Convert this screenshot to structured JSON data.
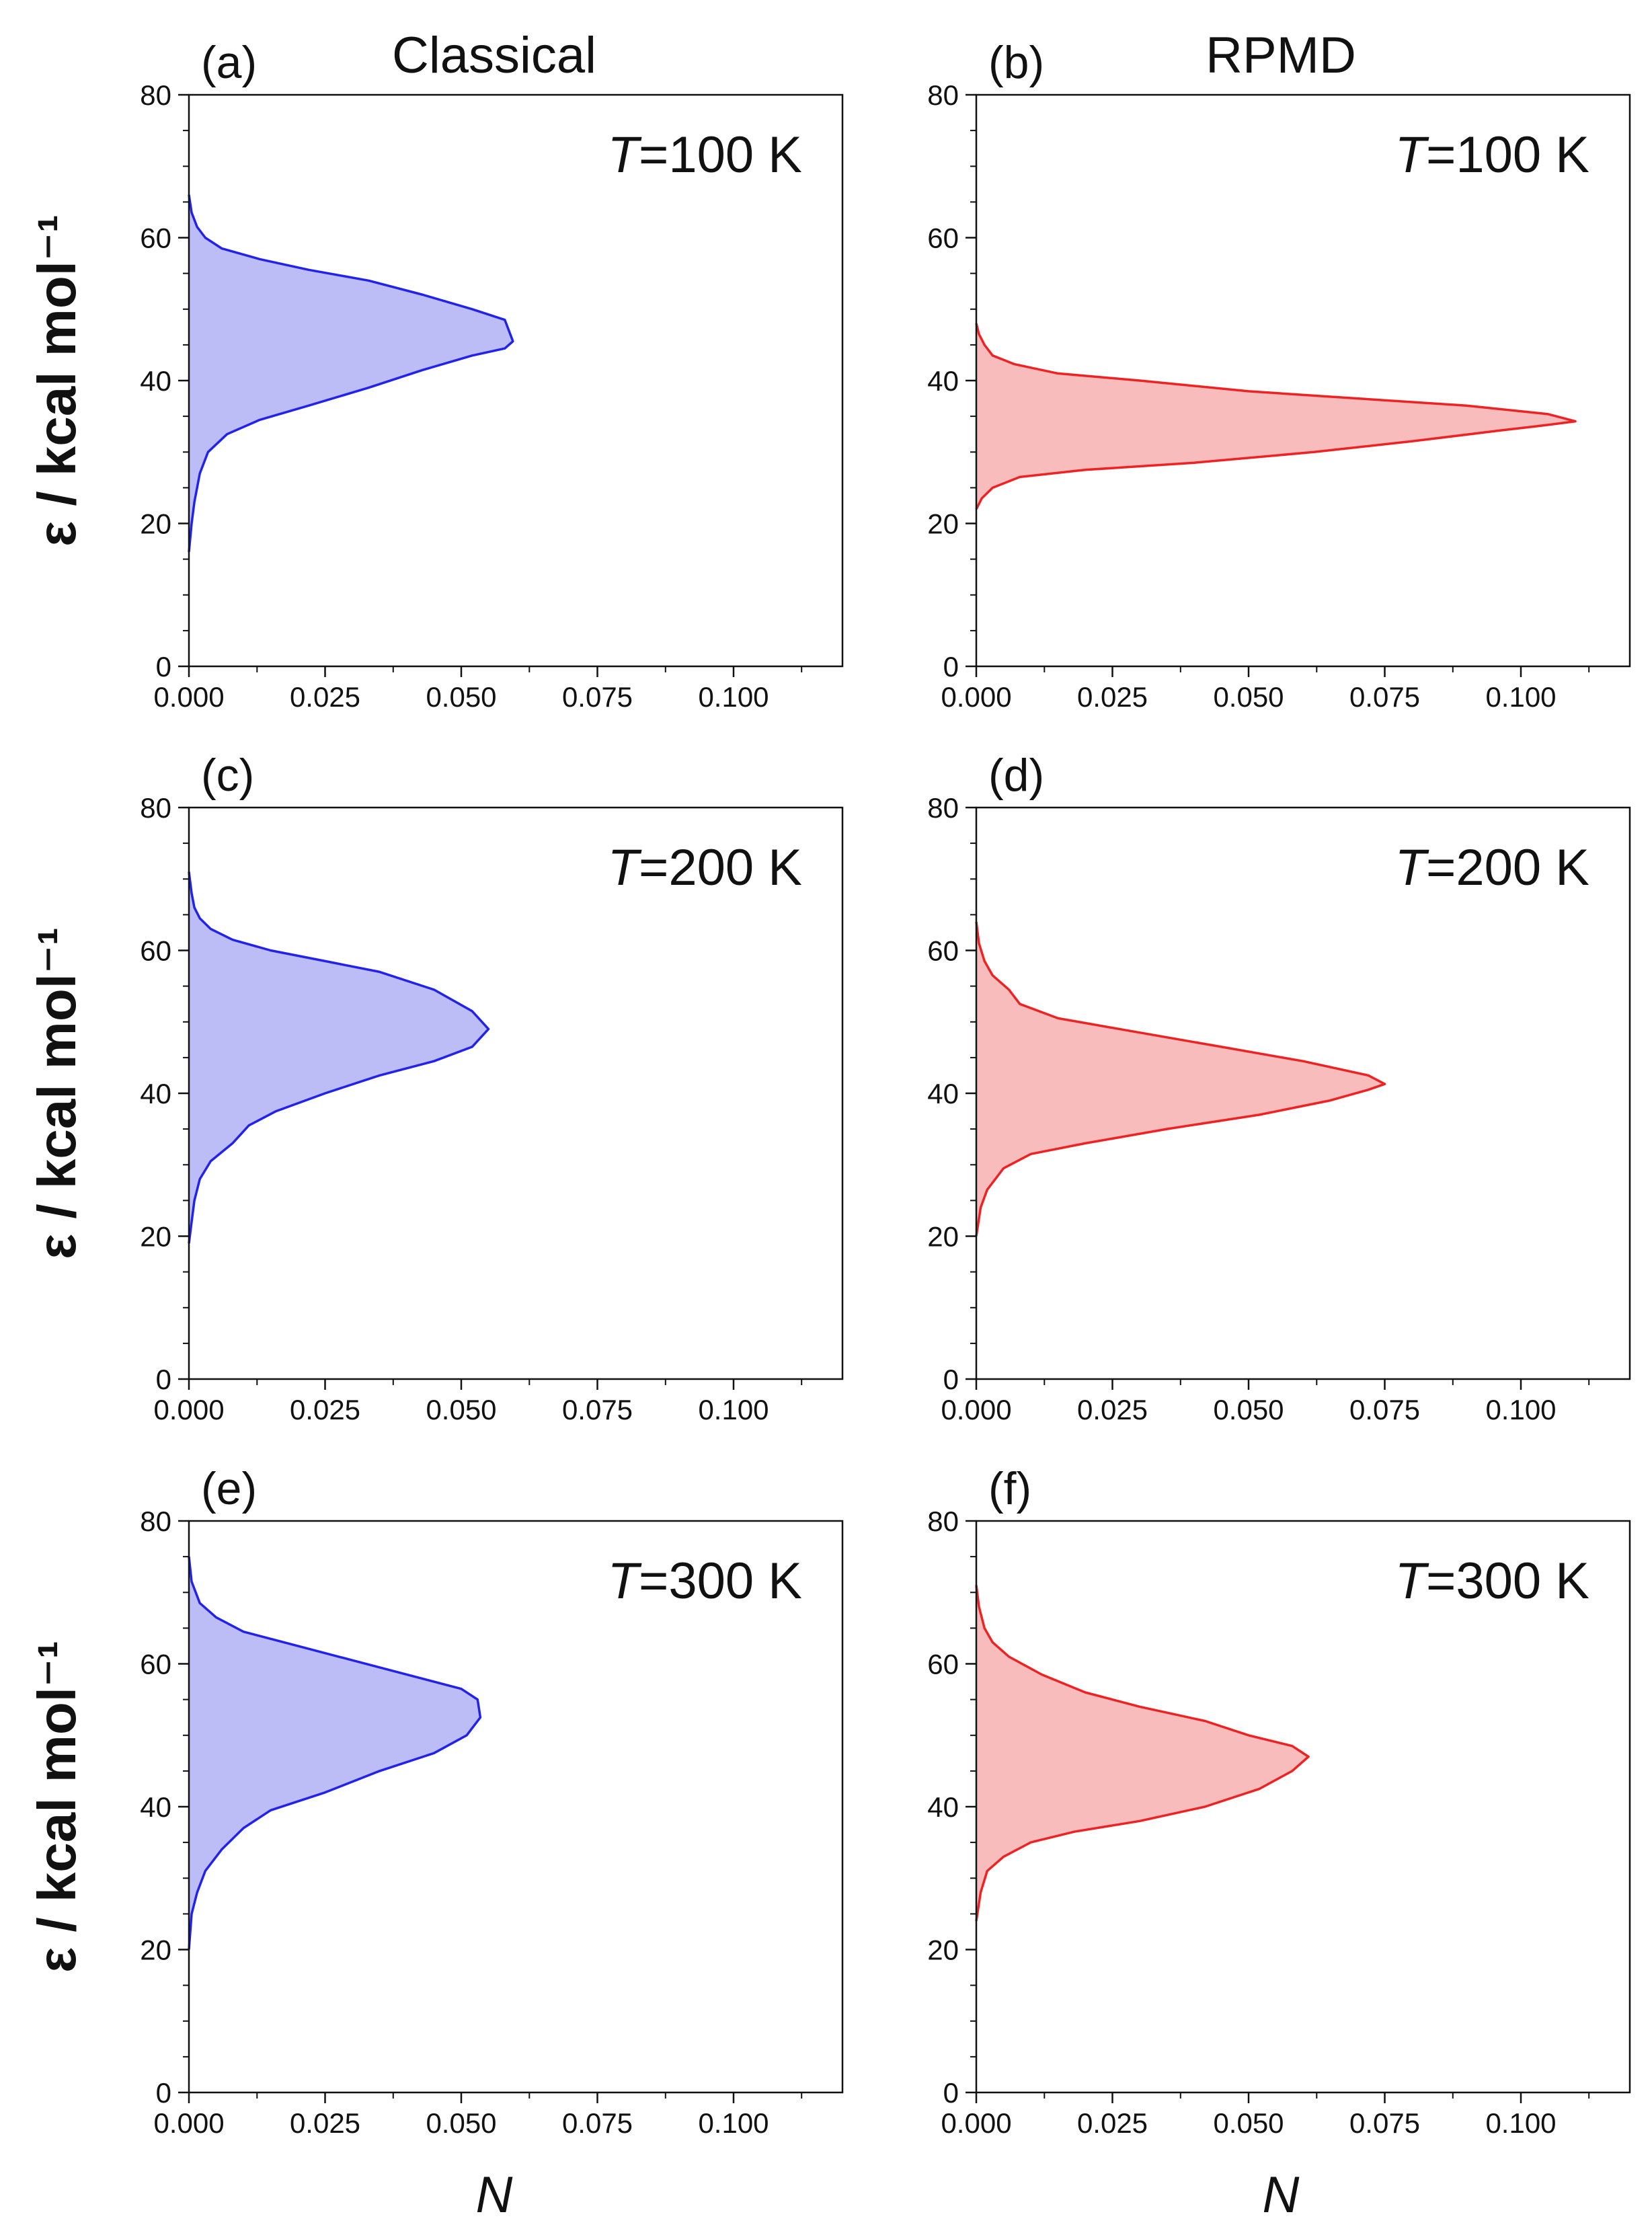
{
  "figure": {
    "column_titles": [
      "Classical",
      "RPMD"
    ],
    "ylabel": "ε / kcal mol⁻¹",
    "xlabel": "N",
    "x_ticks": [
      0,
      0.025,
      0.05,
      0.075,
      0.1
    ],
    "x_tick_labels": [
      "0.000",
      "0.025",
      "0.050",
      "0.075",
      "0.100"
    ],
    "y_ticks": [
      0,
      20,
      40,
      60,
      80
    ],
    "y_tick_labels": [
      "0",
      "20",
      "40",
      "60",
      "80"
    ],
    "xlim": [
      0,
      0.12
    ],
    "ylim": [
      0,
      80
    ],
    "colors": {
      "classical_line": "#2222ee",
      "classical_fill": "#bcbcf7",
      "rpmd_line": "#ee2222",
      "rpmd_fill": "#f9bcbc"
    }
  },
  "chart_data": [
    {
      "panel": "(a)",
      "type": "area",
      "title": "Classical",
      "annotation_prefix": "T",
      "annotation_value": "=100 K",
      "xlabel": "",
      "ylabel": "ε / kcal mol⁻¹",
      "xlim": [
        0,
        0.12
      ],
      "ylim": [
        0,
        80
      ],
      "method": "classical",
      "series": [
        {
          "name": "Classical T=100 K",
          "points": [
            [
              0.0,
              16
            ],
            [
              0.0005,
              20
            ],
            [
              0.001,
              23
            ],
            [
              0.002,
              27
            ],
            [
              0.0035,
              30
            ],
            [
              0.007,
              32.5
            ],
            [
              0.013,
              34.5
            ],
            [
              0.022,
              36.5
            ],
            [
              0.033,
              39
            ],
            [
              0.043,
              41.5
            ],
            [
              0.052,
              43.5
            ],
            [
              0.058,
              44.5
            ],
            [
              0.0595,
              45.5
            ],
            [
              0.058,
              48.5
            ],
            [
              0.052,
              50
            ],
            [
              0.043,
              52
            ],
            [
              0.033,
              54
            ],
            [
              0.022,
              55.5
            ],
            [
              0.013,
              57
            ],
            [
              0.006,
              58.5
            ],
            [
              0.003,
              60
            ],
            [
              0.0015,
              61.5
            ],
            [
              0.0005,
              63.5
            ],
            [
              0.0,
              66
            ]
          ]
        }
      ]
    },
    {
      "panel": "(b)",
      "type": "area",
      "title": "RPMD",
      "annotation_prefix": "T",
      "annotation_value": "=100 K",
      "xlabel": "",
      "ylabel": "",
      "xlim": [
        0,
        0.12
      ],
      "ylim": [
        0,
        80
      ],
      "method": "rpmd",
      "series": [
        {
          "name": "RPMD T=100 K",
          "points": [
            [
              0.0,
              22
            ],
            [
              0.001,
              23.5
            ],
            [
              0.003,
              25
            ],
            [
              0.008,
              26.5
            ],
            [
              0.02,
              27.5
            ],
            [
              0.04,
              28.5
            ],
            [
              0.062,
              30
            ],
            [
              0.08,
              31.5
            ],
            [
              0.096,
              33
            ],
            [
              0.105,
              33.8
            ],
            [
              0.11,
              34.3
            ],
            [
              0.105,
              35.3
            ],
            [
              0.09,
              36.5
            ],
            [
              0.07,
              37.5
            ],
            [
              0.05,
              38.5
            ],
            [
              0.03,
              40
            ],
            [
              0.015,
              41
            ],
            [
              0.007,
              42.3
            ],
            [
              0.003,
              43.5
            ],
            [
              0.0015,
              45
            ],
            [
              0.0005,
              46.5
            ],
            [
              0.0,
              48
            ]
          ]
        }
      ]
    },
    {
      "panel": "(c)",
      "type": "area",
      "title": "",
      "annotation_prefix": "T",
      "annotation_value": "=200 K",
      "xlabel": "",
      "ylabel": "ε / kcal mol⁻¹",
      "xlim": [
        0,
        0.12
      ],
      "ylim": [
        0,
        80
      ],
      "method": "classical",
      "series": [
        {
          "name": "Classical T=200 K",
          "points": [
            [
              0.0,
              19
            ],
            [
              0.0005,
              22
            ],
            [
              0.001,
              25
            ],
            [
              0.002,
              28
            ],
            [
              0.004,
              30.5
            ],
            [
              0.008,
              33
            ],
            [
              0.011,
              35.5
            ],
            [
              0.016,
              37.5
            ],
            [
              0.025,
              40
            ],
            [
              0.035,
              42.5
            ],
            [
              0.045,
              44.5
            ],
            [
              0.052,
              46.5
            ],
            [
              0.055,
              49
            ],
            [
              0.052,
              51.5
            ],
            [
              0.045,
              54.5
            ],
            [
              0.035,
              57
            ],
            [
              0.025,
              58.5
            ],
            [
              0.015,
              60
            ],
            [
              0.008,
              61.5
            ],
            [
              0.004,
              63
            ],
            [
              0.002,
              64.5
            ],
            [
              0.001,
              66
            ],
            [
              0.0005,
              68
            ],
            [
              0.0,
              71
            ]
          ]
        }
      ]
    },
    {
      "panel": "(d)",
      "type": "area",
      "title": "",
      "annotation_prefix": "T",
      "annotation_value": "=200 K",
      "xlabel": "",
      "ylabel": "",
      "xlim": [
        0,
        0.12
      ],
      "ylim": [
        0,
        80
      ],
      "method": "rpmd",
      "series": [
        {
          "name": "RPMD T=200 K",
          "points": [
            [
              0.0,
              20
            ],
            [
              0.0008,
              24
            ],
            [
              0.002,
              26.5
            ],
            [
              0.005,
              29.5
            ],
            [
              0.01,
              31.5
            ],
            [
              0.02,
              33
            ],
            [
              0.035,
              35
            ],
            [
              0.052,
              37
            ],
            [
              0.065,
              39
            ],
            [
              0.072,
              40.5
            ],
            [
              0.075,
              41.3
            ],
            [
              0.072,
              42.5
            ],
            [
              0.06,
              44.5
            ],
            [
              0.045,
              46.5
            ],
            [
              0.03,
              48.5
            ],
            [
              0.015,
              50.5
            ],
            [
              0.008,
              52.5
            ],
            [
              0.006,
              54.5
            ],
            [
              0.003,
              56.5
            ],
            [
              0.0015,
              58.5
            ],
            [
              0.0005,
              61
            ],
            [
              0.0,
              64
            ]
          ]
        }
      ]
    },
    {
      "panel": "(e)",
      "type": "area",
      "title": "",
      "annotation_prefix": "T",
      "annotation_value": "=300 K",
      "xlabel": "N",
      "ylabel": "ε / kcal mol⁻¹",
      "xlim": [
        0,
        0.12
      ],
      "ylim": [
        0,
        80
      ],
      "method": "classical",
      "series": [
        {
          "name": "Classical T=300 K",
          "points": [
            [
              0.0,
              20
            ],
            [
              0.0005,
              25
            ],
            [
              0.0015,
              28
            ],
            [
              0.003,
              31
            ],
            [
              0.006,
              34
            ],
            [
              0.01,
              37
            ],
            [
              0.015,
              39.5
            ],
            [
              0.025,
              42
            ],
            [
              0.035,
              45
            ],
            [
              0.045,
              47.5
            ],
            [
              0.051,
              50
            ],
            [
              0.0535,
              52.5
            ],
            [
              0.053,
              55
            ],
            [
              0.05,
              56.5
            ],
            [
              0.04,
              58.5
            ],
            [
              0.03,
              60.5
            ],
            [
              0.02,
              62.5
            ],
            [
              0.01,
              64.5
            ],
            [
              0.005,
              66.5
            ],
            [
              0.002,
              68.5
            ],
            [
              0.0005,
              71.5
            ],
            [
              0.0,
              75
            ]
          ]
        }
      ]
    },
    {
      "panel": "(f)",
      "type": "area",
      "title": "",
      "annotation_prefix": "T",
      "annotation_value": "=300 K",
      "xlabel": "N",
      "ylabel": "",
      "xlim": [
        0,
        0.12
      ],
      "ylim": [
        0,
        80
      ],
      "method": "rpmd",
      "series": [
        {
          "name": "RPMD T=300 K",
          "points": [
            [
              0.0,
              24
            ],
            [
              0.0008,
              28
            ],
            [
              0.002,
              31
            ],
            [
              0.005,
              33
            ],
            [
              0.01,
              35
            ],
            [
              0.018,
              36.5
            ],
            [
              0.03,
              38
            ],
            [
              0.042,
              40
            ],
            [
              0.052,
              42.5
            ],
            [
              0.058,
              45
            ],
            [
              0.061,
              47
            ],
            [
              0.058,
              48.5
            ],
            [
              0.05,
              50
            ],
            [
              0.042,
              52
            ],
            [
              0.03,
              54
            ],
            [
              0.02,
              56
            ],
            [
              0.012,
              58.5
            ],
            [
              0.006,
              61
            ],
            [
              0.003,
              63
            ],
            [
              0.0015,
              65
            ],
            [
              0.0005,
              68
            ],
            [
              0.0,
              71
            ]
          ]
        }
      ]
    }
  ]
}
